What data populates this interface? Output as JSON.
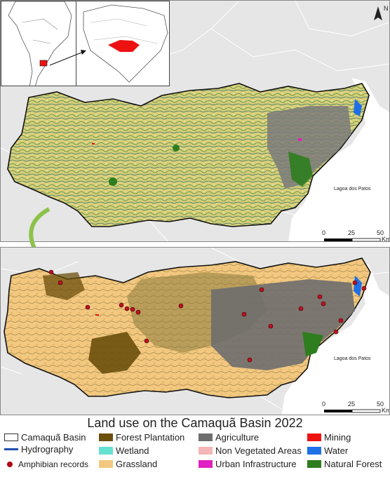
{
  "map": {
    "top_panel": {
      "lagoon_label": "Lagoa dos Patos",
      "scale": {
        "ticks": [
          "0",
          "25",
          "50"
        ],
        "unit": "Km"
      },
      "north_label": "N"
    },
    "bottom_panel": {
      "lagoon_label": "Lagoa dos Patos",
      "scale": {
        "ticks": [
          "0",
          "25",
          "50"
        ],
        "unit": "Km"
      }
    },
    "arrow_color": "#8bc34a"
  },
  "legend": {
    "title": "Land use on the Camaquã Basin 2022",
    "items": {
      "basin": {
        "label": "Camaquã Basin",
        "color": "#ffffff"
      },
      "hydro": {
        "label": "Hydrography",
        "color": "#1f4fb0"
      },
      "amphib": {
        "label": "Amphibian records",
        "color": "#b00016"
      },
      "forest_plantation": {
        "label": "Forest Plantation",
        "color": "#6b4f0c"
      },
      "wetland": {
        "label": "Wetland",
        "color": "#66e0d0"
      },
      "grassland": {
        "label": "Grassland",
        "color": "#f2c880"
      },
      "agriculture": {
        "label": "Agriculture",
        "color": "#6e6e6e"
      },
      "non_vegetated": {
        "label": "Non Vegetated Areas",
        "color": "#f4b6b6"
      },
      "urban": {
        "label": "Urban Infrastructure",
        "color": "#e020c0"
      },
      "mining": {
        "label": "Mining",
        "color": "#ee1111"
      },
      "water": {
        "label": "Water",
        "color": "#1e6fe8"
      },
      "natural_forest": {
        "label": "Natural Forest",
        "color": "#2e7d1e"
      }
    }
  }
}
